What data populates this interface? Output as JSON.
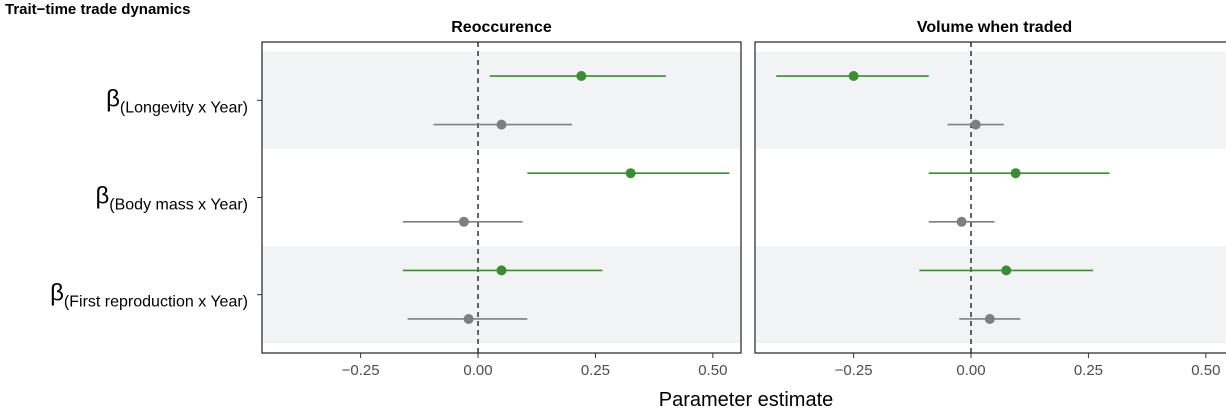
{
  "chart_data": {
    "type": "dot-whisker",
    "title": "Trait−time trade dynamics",
    "xlabel": "Parameter estimate",
    "ylabel": "",
    "xlim": [
      -0.46,
      0.56
    ],
    "xticks": [
      {
        "value": -0.25,
        "label": "−0.25"
      },
      {
        "value": 0,
        "label": "0.00"
      },
      {
        "value": 0.25,
        "label": "0.25"
      },
      {
        "value": 0.5,
        "label": "0.50"
      }
    ],
    "reference_line": 0,
    "terms": [
      {
        "symbol": "β",
        "subscript": "(Longevity x Year)"
      },
      {
        "symbol": "β",
        "subscript": "(Body mass x Year)"
      },
      {
        "symbol": "β",
        "subscript": "(First reproduction x Year)"
      }
    ],
    "series_colors": [
      "#3d8b37",
      "#7f7f7f"
    ],
    "band_color": "#f2f3f5",
    "panels": [
      {
        "title": "Reoccurence",
        "series": [
          {
            "estimates": [
              0.22,
              0.325,
              0.05
            ],
            "lower": [
              0.025,
              0.105,
              -0.16
            ],
            "upper": [
              0.4,
              0.535,
              0.265
            ]
          },
          {
            "estimates": [
              0.05,
              -0.03,
              -0.02
            ],
            "lower": [
              -0.095,
              -0.16,
              -0.15
            ],
            "upper": [
              0.2,
              0.095,
              0.105
            ]
          }
        ]
      },
      {
        "title": "Volume when traded",
        "series": [
          {
            "estimates": [
              -0.25,
              0.095,
              0.075
            ],
            "lower": [
              -0.415,
              -0.09,
              -0.11
            ],
            "upper": [
              -0.09,
              0.295,
              0.26
            ]
          },
          {
            "estimates": [
              0.01,
              -0.02,
              0.04
            ],
            "lower": [
              -0.05,
              -0.09,
              -0.025
            ],
            "upper": [
              0.07,
              0.05,
              0.105
            ]
          }
        ]
      }
    ]
  }
}
